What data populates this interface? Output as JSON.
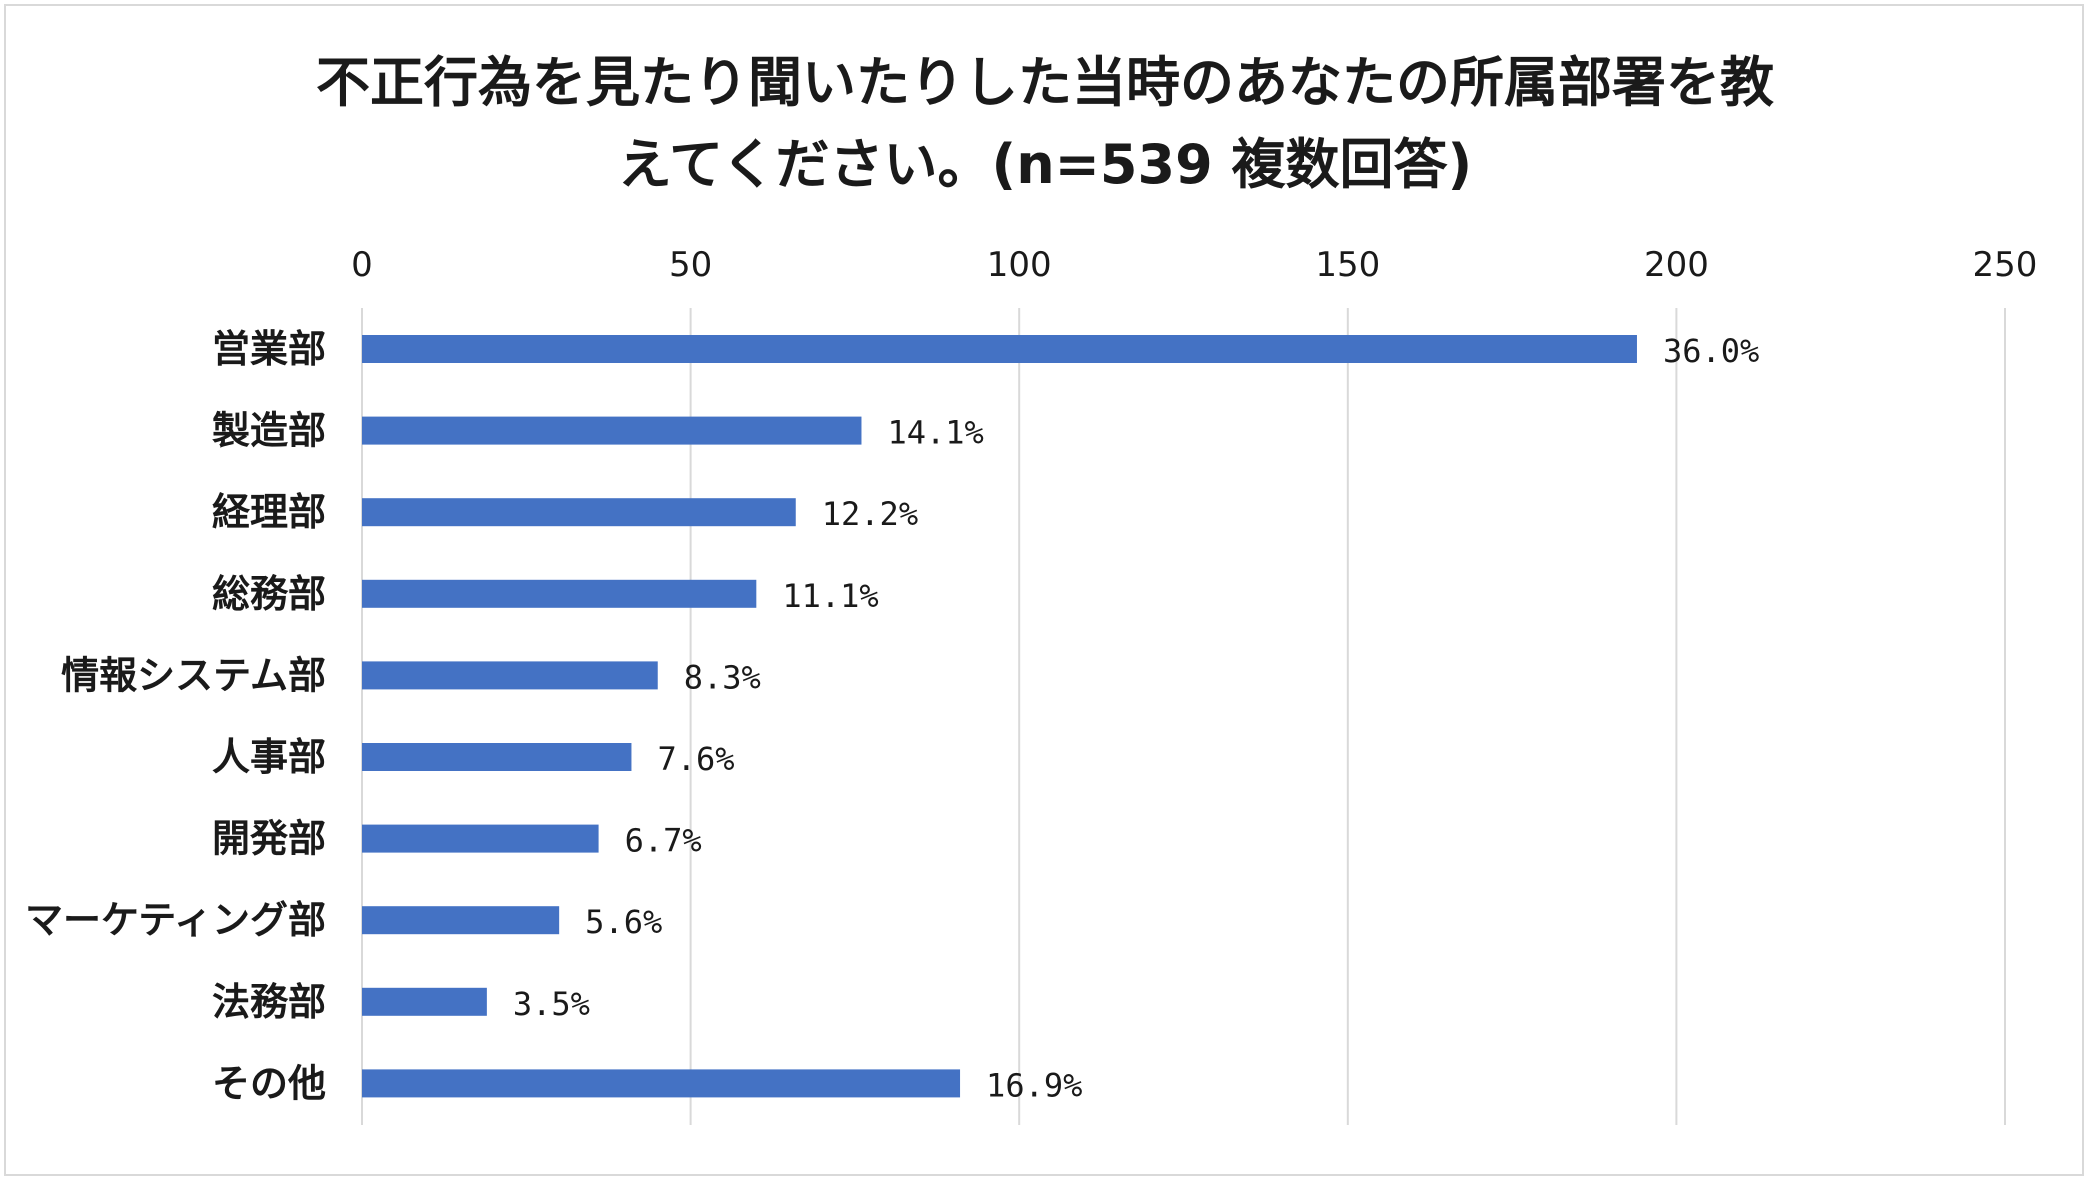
{
  "chart_data": {
    "type": "bar",
    "orientation": "horizontal",
    "title_lines": [
      "不正行為を見たり聞いたりした当時のあなたの所属部署を教",
      "えてください。(n=539 複数回答)"
    ],
    "categories": [
      "営業部",
      "製造部",
      "経理部",
      "総務部",
      "情報システム部",
      "人事部",
      "開発部",
      "マーケティング部",
      "法務部",
      "その他"
    ],
    "values": [
      194,
      76,
      66,
      60,
      45,
      41,
      36,
      30,
      19,
      91
    ],
    "data_labels": [
      "36.0%",
      "14.1%",
      "12.2%",
      "11.1%",
      "8.3%",
      "7.6%",
      "6.7%",
      "5.6%",
      "3.5%",
      "16.9%"
    ],
    "xlim": [
      0,
      250
    ],
    "x_ticks": [
      "0",
      "50",
      "100",
      "150",
      "200",
      "250"
    ],
    "x_axis_position": "top",
    "grid": true,
    "legend": "none",
    "bar_color": "#4472c4",
    "grid_color": "#d9d9d9"
  }
}
